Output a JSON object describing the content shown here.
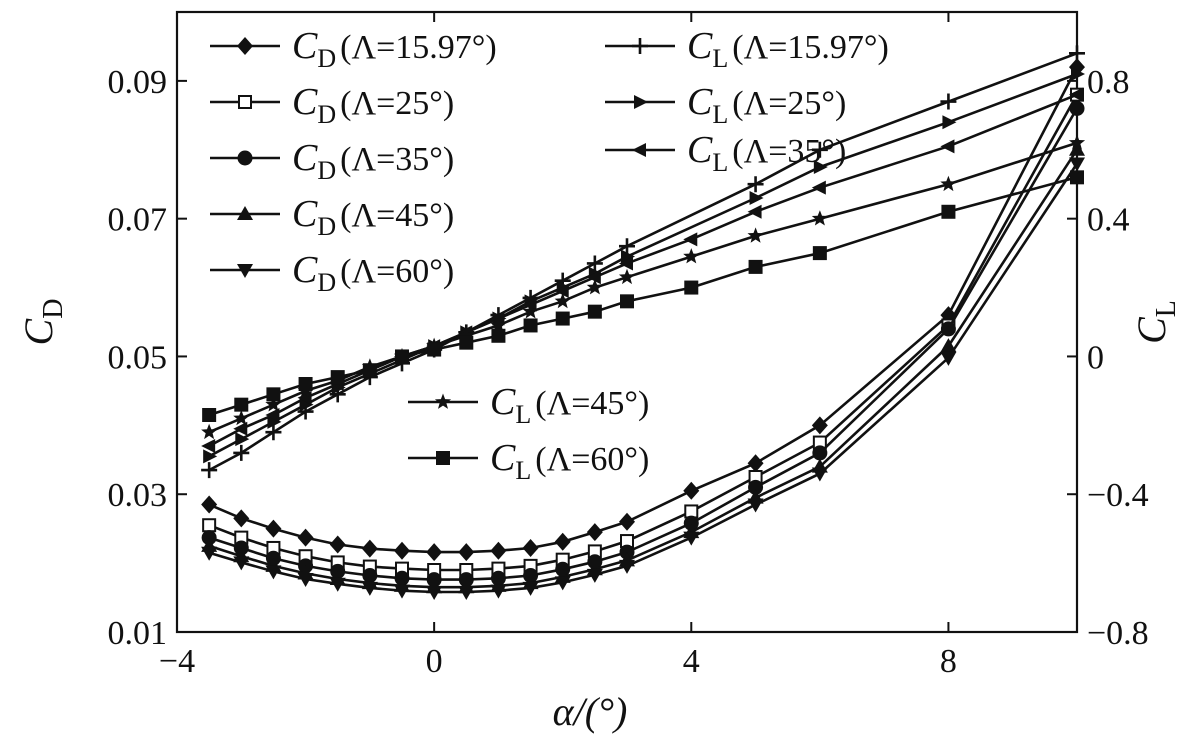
{
  "chart_data": {
    "type": "line",
    "xlabel": "α/(°)",
    "ylabel_left": "C_D",
    "ylabel_right": "C_L",
    "xlim": [
      -4,
      10
    ],
    "ylim_left": [
      0.01,
      0.1
    ],
    "ylim_right": [
      -0.8,
      1.0
    ],
    "x_ticks": [
      "−4",
      "0",
      "4",
      "8"
    ],
    "y_left_ticks": [
      "0.01",
      "0.03",
      "0.05",
      "0.07",
      "0.09"
    ],
    "y_right_ticks": [
      "−0.8",
      "−0.4",
      "0",
      "0.4",
      "0.8"
    ],
    "legend_position": "top-left",
    "series": [
      {
        "name": "CD(Λ=15.97°)",
        "label_main": "C",
        "label_sub": "D",
        "label_param": "(Λ=15.97°)",
        "axis": "left",
        "marker": "diamond",
        "x": [
          -3.5,
          -3,
          -2.5,
          -2,
          -1.5,
          -1,
          -0.5,
          0,
          0.5,
          1,
          1.5,
          2,
          2.5,
          3,
          4,
          5,
          6,
          8,
          10
        ],
        "y": [
          0.0285,
          0.0265,
          0.025,
          0.0237,
          0.0227,
          0.0221,
          0.0218,
          0.0216,
          0.0216,
          0.0218,
          0.0222,
          0.0231,
          0.0245,
          0.026,
          0.0305,
          0.0345,
          0.04,
          0.056,
          0.092
        ]
      },
      {
        "name": "CD(Λ=25°)",
        "label_main": "C",
        "label_sub": "D",
        "label_param": "(Λ=25°)",
        "axis": "left",
        "marker": "square-open",
        "x": [
          -3.5,
          -3,
          -2.5,
          -2,
          -1.5,
          -1,
          -0.5,
          0,
          0.5,
          1,
          1.5,
          2,
          2.5,
          3,
          4,
          5,
          6,
          8,
          10
        ],
        "y": [
          0.0255,
          0.0237,
          0.0222,
          0.021,
          0.0201,
          0.0195,
          0.0192,
          0.019,
          0.019,
          0.0192,
          0.0196,
          0.0205,
          0.0217,
          0.0232,
          0.0275,
          0.0325,
          0.0375,
          0.0545,
          0.088
        ]
      },
      {
        "name": "CD(Λ=35°)",
        "label_main": "C",
        "label_sub": "D",
        "label_param": "(Λ=35°)",
        "axis": "left",
        "marker": "circle",
        "x": [
          -3.5,
          -3,
          -2.5,
          -2,
          -1.5,
          -1,
          -0.5,
          0,
          0.5,
          1,
          1.5,
          2,
          2.5,
          3,
          4,
          5,
          6,
          8,
          10
        ],
        "y": [
          0.0237,
          0.0222,
          0.0207,
          0.0196,
          0.0188,
          0.0182,
          0.0178,
          0.0176,
          0.0176,
          0.0178,
          0.0182,
          0.0191,
          0.0202,
          0.0216,
          0.0258,
          0.031,
          0.036,
          0.054,
          0.086
        ]
      },
      {
        "name": "CD(Λ=45°)",
        "label_main": "C",
        "label_sub": "D",
        "label_param": "(Λ=45°)",
        "axis": "left",
        "marker": "triangle-up",
        "x": [
          -3.5,
          -3,
          -2.5,
          -2,
          -1.5,
          -1,
          -0.5,
          0,
          0.5,
          1,
          1.5,
          2,
          2.5,
          3,
          4,
          5,
          6,
          8,
          10
        ],
        "y": [
          0.0225,
          0.021,
          0.0196,
          0.0185,
          0.0177,
          0.0171,
          0.0167,
          0.0165,
          0.0165,
          0.0167,
          0.0171,
          0.018,
          0.0191,
          0.0204,
          0.0245,
          0.0295,
          0.034,
          0.0515,
          0.08
        ]
      },
      {
        "name": "CD(Λ=60°)",
        "label_main": "C",
        "label_sub": "D",
        "label_param": "(Λ=60°)",
        "axis": "left",
        "marker": "triangle-down",
        "x": [
          -3.5,
          -3,
          -2.5,
          -2,
          -1.5,
          -1,
          -0.5,
          0,
          0.5,
          1,
          1.5,
          2,
          2.5,
          3,
          4,
          5,
          6,
          8,
          10
        ],
        "y": [
          0.0215,
          0.0201,
          0.0188,
          0.0177,
          0.017,
          0.0164,
          0.016,
          0.0158,
          0.0158,
          0.016,
          0.0164,
          0.0172,
          0.0183,
          0.0196,
          0.0237,
          0.0285,
          0.033,
          0.0498,
          0.078
        ]
      },
      {
        "name": "CL(Λ=15.97°)",
        "label_main": "C",
        "label_sub": "L",
        "label_param": "(Λ=15.97°)",
        "axis": "right",
        "marker": "plus",
        "x": [
          -3.5,
          -3,
          -2.5,
          -2,
          -1.5,
          -1,
          -0.5,
          0,
          0.5,
          1,
          1.5,
          2,
          2.5,
          3,
          5,
          6,
          8,
          10
        ],
        "y": [
          -0.33,
          -0.28,
          -0.22,
          -0.16,
          -0.11,
          -0.06,
          -0.02,
          0.02,
          0.07,
          0.12,
          0.17,
          0.22,
          0.27,
          0.32,
          0.5,
          0.6,
          0.74,
          0.88
        ]
      },
      {
        "name": "CL(Λ=25°)",
        "label_main": "C",
        "label_sub": "L",
        "label_param": "(Λ=25°)",
        "axis": "right",
        "marker": "triangle-right",
        "x": [
          -3.5,
          -3,
          -2.5,
          -2,
          -1.5,
          -1,
          -0.5,
          0,
          0.5,
          1,
          1.5,
          2,
          2.5,
          3,
          5,
          6,
          8,
          10
        ],
        "y": [
          -0.29,
          -0.24,
          -0.19,
          -0.14,
          -0.09,
          -0.05,
          -0.01,
          0.03,
          0.07,
          0.11,
          0.16,
          0.2,
          0.24,
          0.29,
          0.46,
          0.55,
          0.68,
          0.82
        ]
      },
      {
        "name": "CL(Λ=35°)",
        "label_main": "C",
        "label_sub": "L",
        "label_param": "(Λ=35°)",
        "axis": "right",
        "marker": "triangle-left",
        "x": [
          -3.5,
          -3,
          -2.5,
          -2,
          -1.5,
          -1,
          -0.5,
          0,
          0.5,
          1,
          1.5,
          2,
          2.5,
          3,
          4,
          5,
          6,
          8,
          10
        ],
        "y": [
          -0.26,
          -0.21,
          -0.17,
          -0.12,
          -0.08,
          -0.04,
          0.0,
          0.03,
          0.07,
          0.11,
          0.15,
          0.19,
          0.23,
          0.27,
          0.34,
          0.42,
          0.49,
          0.61,
          0.76
        ]
      },
      {
        "name": "CL(Λ=45°)",
        "label_main": "C",
        "label_sub": "L",
        "label_param": "(Λ=45°)",
        "axis": "right",
        "marker": "star",
        "x": [
          -3.5,
          -3,
          -2.5,
          -2,
          -1.5,
          -1,
          -0.5,
          0,
          0.5,
          1,
          1.5,
          2,
          2.5,
          3,
          4,
          5,
          6,
          8,
          10
        ],
        "y": [
          -0.22,
          -0.18,
          -0.14,
          -0.1,
          -0.07,
          -0.03,
          0.0,
          0.03,
          0.06,
          0.09,
          0.13,
          0.16,
          0.2,
          0.23,
          0.29,
          0.35,
          0.4,
          0.5,
          0.62
        ]
      },
      {
        "name": "CL(Λ=60°)",
        "label_main": "C",
        "label_sub": "L",
        "label_param": "(Λ=60°)",
        "axis": "right",
        "marker": "square",
        "x": [
          -3.5,
          -3,
          -2.5,
          -2,
          -1.5,
          -1,
          -0.5,
          0,
          0.5,
          1,
          1.5,
          2,
          2.5,
          3,
          4,
          5,
          6,
          8,
          10
        ],
        "y": [
          -0.17,
          -0.14,
          -0.11,
          -0.08,
          -0.06,
          -0.04,
          0.0,
          0.02,
          0.04,
          0.06,
          0.09,
          0.11,
          0.13,
          0.16,
          0.2,
          0.26,
          0.3,
          0.42,
          0.52
        ]
      }
    ]
  }
}
